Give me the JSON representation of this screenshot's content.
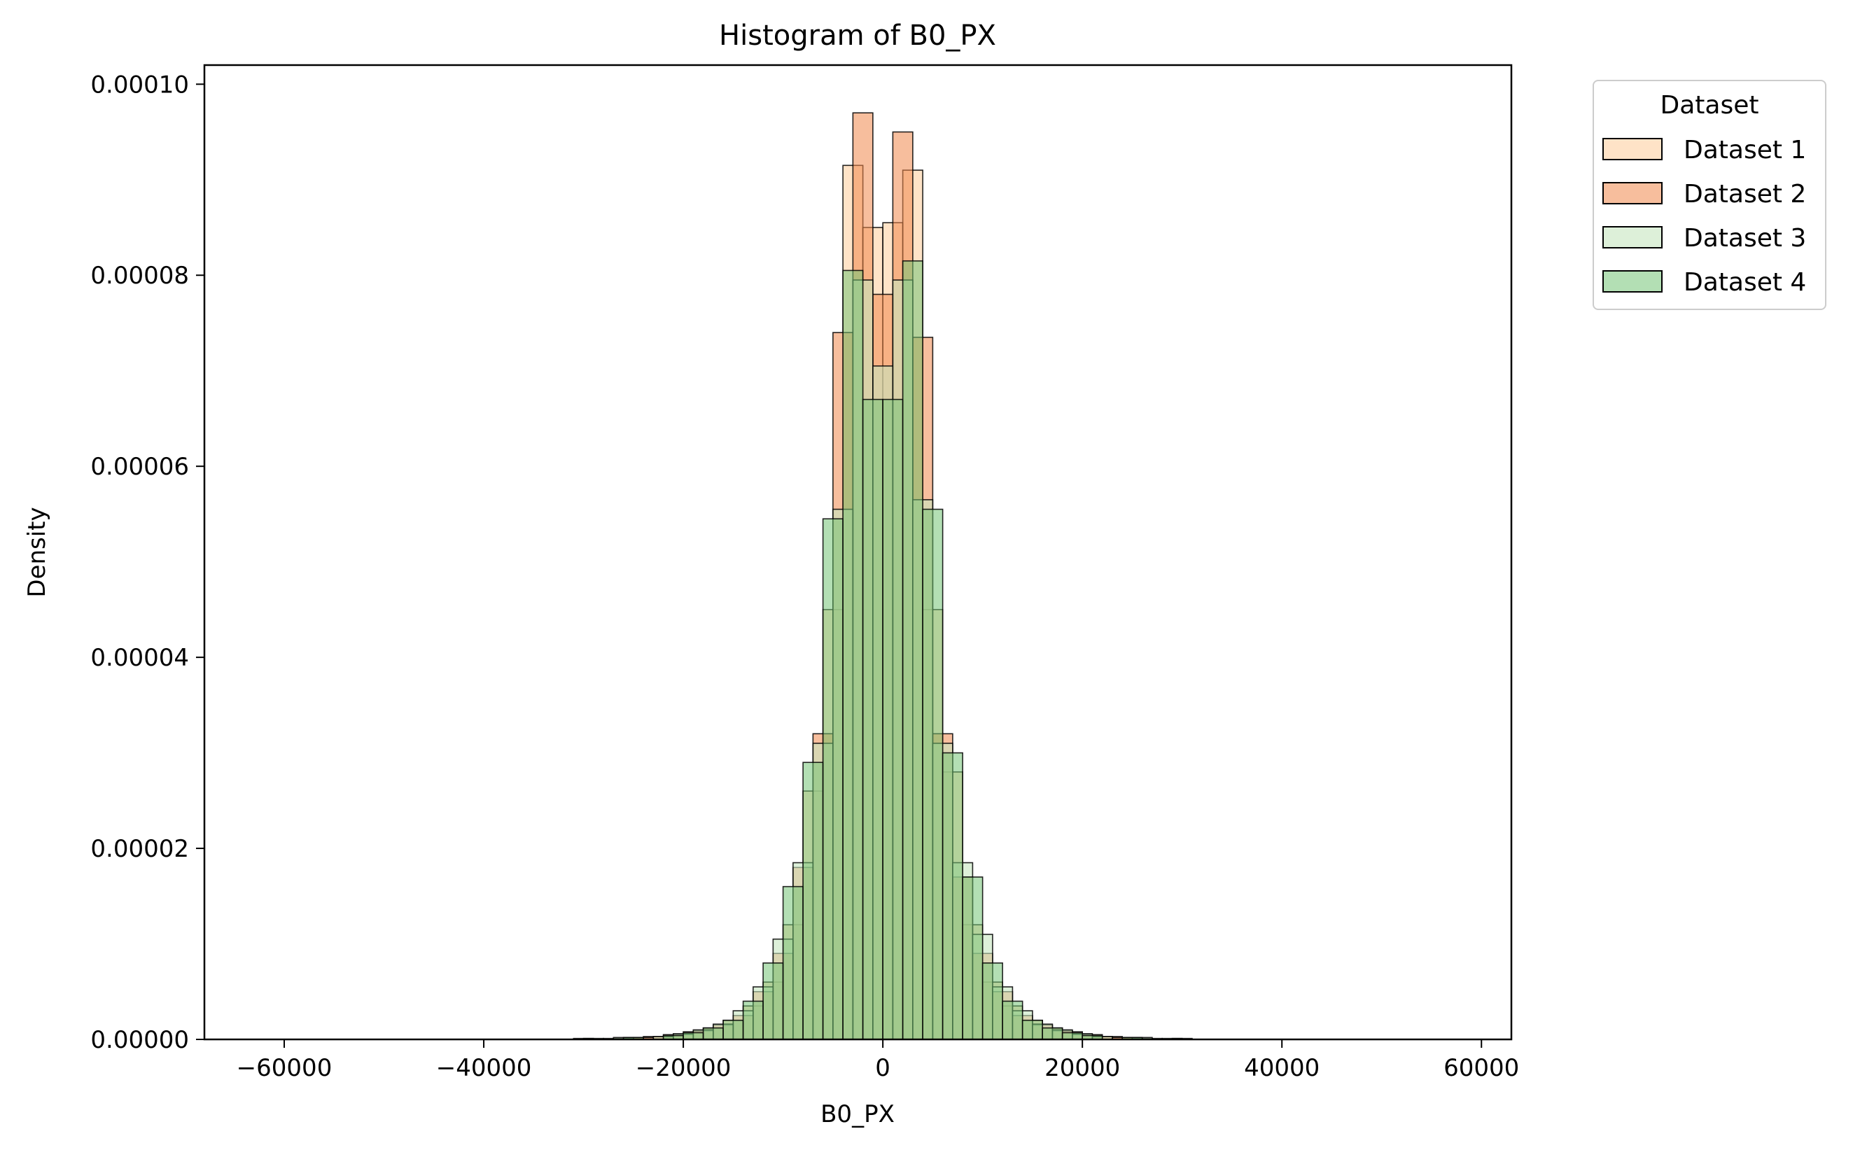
{
  "chart_data": {
    "type": "bar",
    "subtype": "overlaid-histogram",
    "title": "Histogram of B0_PX",
    "xlabel": "B0_PX",
    "ylabel": "Density",
    "xlim": [
      -68000,
      63000
    ],
    "ylim": [
      0,
      0.000102
    ],
    "xticks": [
      -60000,
      -40000,
      -20000,
      0,
      20000,
      40000,
      60000
    ],
    "xtick_labels": [
      "−60000",
      "−40000",
      "−20000",
      "0",
      "20000",
      "40000",
      "60000"
    ],
    "yticks": [
      0,
      2e-05,
      4e-05,
      6e-05,
      8e-05,
      0.0001
    ],
    "ytick_labels": [
      "0.00000",
      "0.00002",
      "0.00004",
      "0.00006",
      "0.00008",
      "0.00010"
    ],
    "grid": false,
    "legend": {
      "title": "Dataset",
      "placement": "outside-top-right"
    },
    "bin_width": 2000,
    "series": [
      {
        "name": "Dataset 1",
        "color": "#fdd0a2",
        "alpha": 0.6,
        "bins": [
          [
            -27000,
            1e-07
          ],
          [
            -25000,
            2e-07
          ],
          [
            -23000,
            3e-07
          ],
          [
            -21000,
            5e-07
          ],
          [
            -19000,
            8e-07
          ],
          [
            -17000,
            1.2e-06
          ],
          [
            -15000,
            2e-06
          ],
          [
            -13000,
            3.5e-06
          ],
          [
            -11000,
            6e-06
          ],
          [
            -9000,
            1.2e-05
          ],
          [
            -7000,
            2.6e-05
          ],
          [
            -5000,
            4.5e-05
          ],
          [
            -3000,
            9.15e-05
          ],
          [
            -1000,
            8.5e-05
          ],
          [
            1000,
            8.55e-05
          ],
          [
            3000,
            9.1e-05
          ],
          [
            5000,
            4.5e-05
          ],
          [
            7000,
            2.8e-05
          ],
          [
            9000,
            1.2e-05
          ],
          [
            11000,
            6e-06
          ],
          [
            13000,
            3.5e-06
          ],
          [
            15000,
            2e-06
          ],
          [
            17000,
            1.2e-06
          ],
          [
            19000,
            8e-07
          ],
          [
            21000,
            5e-07
          ],
          [
            23000,
            3e-07
          ],
          [
            25000,
            2e-07
          ],
          [
            27000,
            1e-07
          ]
        ]
      },
      {
        "name": "Dataset 2",
        "color": "#f0884d",
        "alpha": 0.55,
        "bins": [
          [
            -26000,
            1e-07
          ],
          [
            -24000,
            2e-07
          ],
          [
            -22000,
            3e-07
          ],
          [
            -20000,
            5e-07
          ],
          [
            -18000,
            9e-07
          ],
          [
            -16000,
            1.5e-06
          ],
          [
            -14000,
            2.5e-06
          ],
          [
            -12000,
            5e-06
          ],
          [
            -10000,
            9e-06
          ],
          [
            -8000,
            1.8e-05
          ],
          [
            -6000,
            3.2e-05
          ],
          [
            -4000,
            7.4e-05
          ],
          [
            -2000,
            9.7e-05
          ],
          [
            0,
            7.8e-05
          ],
          [
            2000,
            9.5e-05
          ],
          [
            4000,
            7.35e-05
          ],
          [
            6000,
            3.2e-05
          ],
          [
            8000,
            1.7e-05
          ],
          [
            10000,
            9e-06
          ],
          [
            12000,
            5e-06
          ],
          [
            14000,
            2.5e-06
          ],
          [
            16000,
            1.5e-06
          ],
          [
            18000,
            9e-07
          ],
          [
            20000,
            5e-07
          ],
          [
            22000,
            3e-07
          ],
          [
            24000,
            2e-07
          ],
          [
            26000,
            1e-07
          ]
        ]
      },
      {
        "name": "Dataset 3",
        "color": "#c7e6c0",
        "alpha": 0.6,
        "bins": [
          [
            -30000,
            1e-07
          ],
          [
            -26000,
            2e-07
          ],
          [
            -22000,
            3e-07
          ],
          [
            -20000,
            6e-07
          ],
          [
            -18000,
            1e-06
          ],
          [
            -16000,
            1.6e-06
          ],
          [
            -14000,
            3e-06
          ],
          [
            -12000,
            5.5e-06
          ],
          [
            -10000,
            1.05e-05
          ],
          [
            -8000,
            1.85e-05
          ],
          [
            -6000,
            3.1e-05
          ],
          [
            -4000,
            5.55e-05
          ],
          [
            -2000,
            7.95e-05
          ],
          [
            0,
            7.05e-05
          ],
          [
            2000,
            7.95e-05
          ],
          [
            4000,
            5.65e-05
          ],
          [
            6000,
            3.1e-05
          ],
          [
            8000,
            1.85e-05
          ],
          [
            10000,
            1.1e-05
          ],
          [
            12000,
            5.5e-06
          ],
          [
            14000,
            3e-06
          ],
          [
            16000,
            1.6e-06
          ],
          [
            18000,
            1e-06
          ],
          [
            20000,
            6e-07
          ],
          [
            22000,
            3e-07
          ],
          [
            26000,
            2e-07
          ],
          [
            30000,
            1e-07
          ]
        ]
      },
      {
        "name": "Dataset 4",
        "color": "#74c476",
        "alpha": 0.55,
        "bins": [
          [
            -29000,
            1e-07
          ],
          [
            -25000,
            2e-07
          ],
          [
            -21000,
            4e-07
          ],
          [
            -19000,
            7e-07
          ],
          [
            -17000,
            1.2e-06
          ],
          [
            -15000,
            2e-06
          ],
          [
            -13000,
            4e-06
          ],
          [
            -11000,
            8e-06
          ],
          [
            -9000,
            1.6e-05
          ],
          [
            -7000,
            2.9e-05
          ],
          [
            -5000,
            5.45e-05
          ],
          [
            -3000,
            8.05e-05
          ],
          [
            -1000,
            6.7e-05
          ],
          [
            1000,
            6.7e-05
          ],
          [
            3000,
            8.15e-05
          ],
          [
            5000,
            5.55e-05
          ],
          [
            7000,
            3e-05
          ],
          [
            9000,
            1.7e-05
          ],
          [
            11000,
            8e-06
          ],
          [
            13000,
            4e-06
          ],
          [
            15000,
            2e-06
          ],
          [
            17000,
            1.2e-06
          ],
          [
            19000,
            7e-07
          ],
          [
            21000,
            4e-07
          ],
          [
            25000,
            2e-07
          ],
          [
            29000,
            1e-07
          ]
        ]
      }
    ]
  }
}
